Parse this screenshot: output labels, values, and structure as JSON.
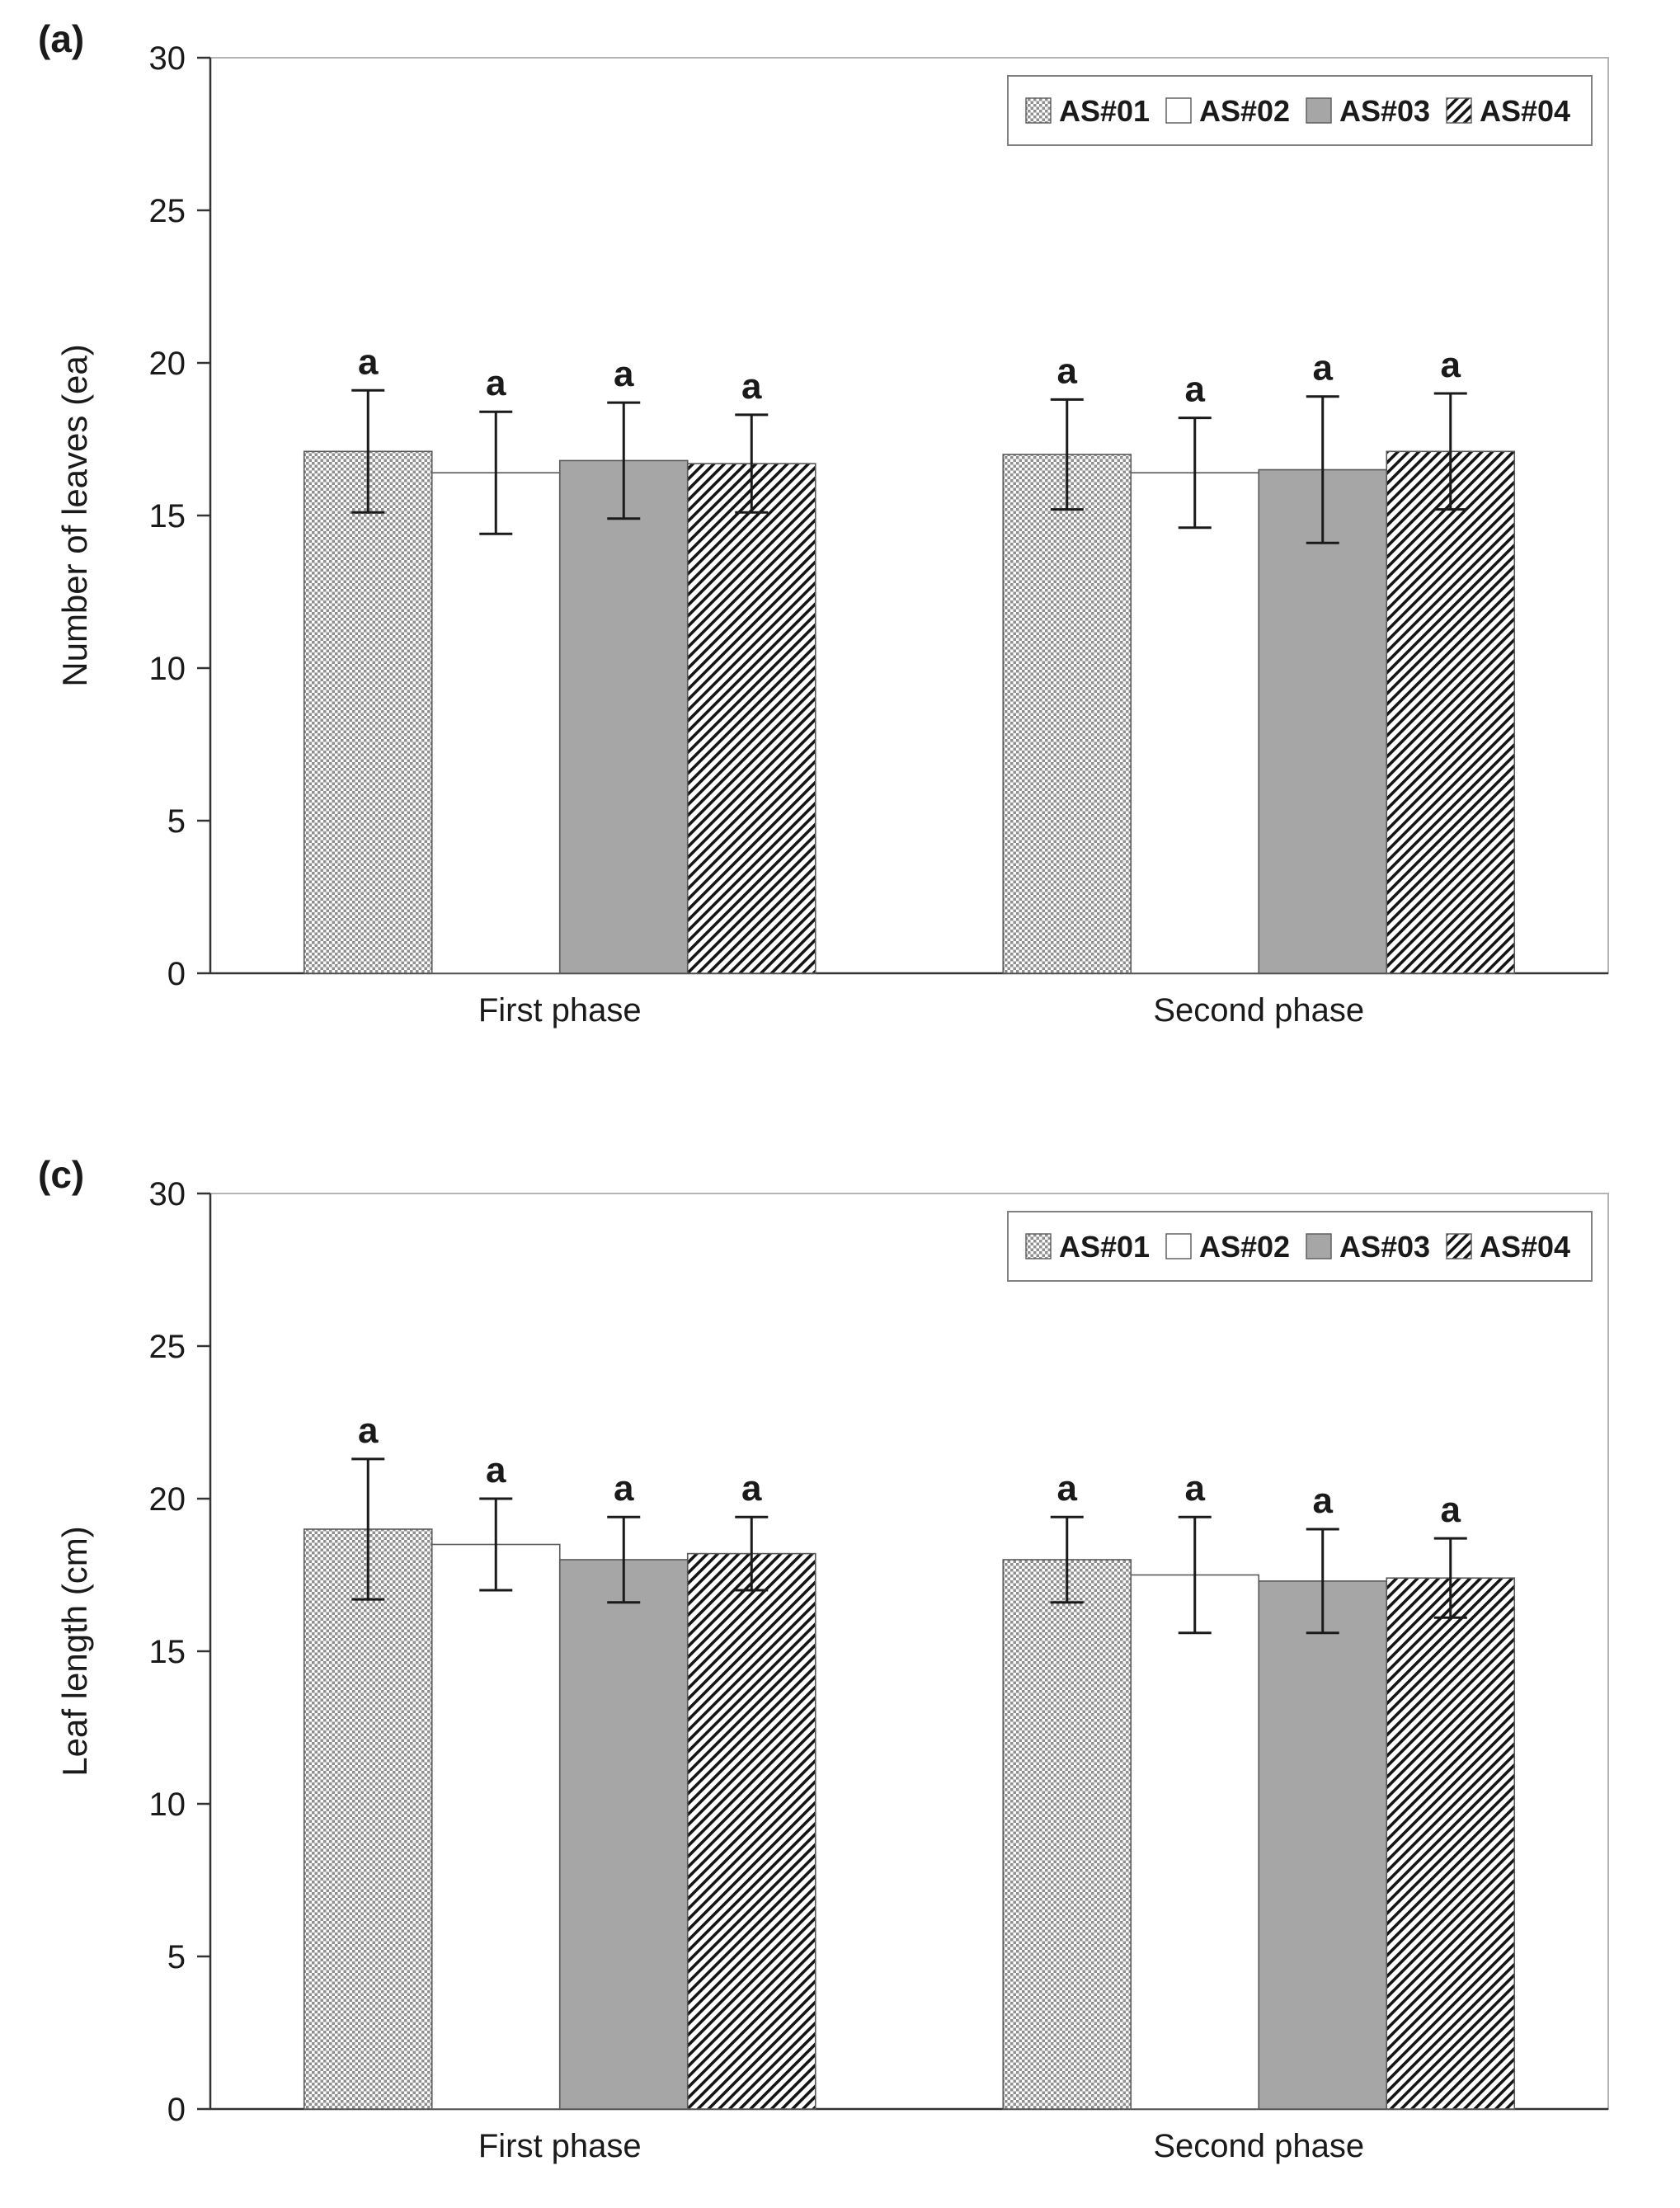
{
  "page": {
    "background": "#ffffff"
  },
  "chart_data": [
    {
      "type": "bar",
      "panel_label": "(a)",
      "title": "",
      "xlabel": "",
      "ylabel": "Number of leaves (ea)",
      "ylim": [
        0,
        30
      ],
      "yticks": [
        0,
        5,
        10,
        15,
        20,
        25,
        30
      ],
      "grid": false,
      "legend_position": "top-right-inside",
      "categories": [
        "First phase",
        "Second phase"
      ],
      "series": [
        {
          "name": "AS#01",
          "pattern": "dots",
          "values": [
            17.1,
            17.0
          ],
          "errors": [
            2.0,
            1.8
          ],
          "sig_labels": [
            "a",
            "a"
          ]
        },
        {
          "name": "AS#02",
          "pattern": "white",
          "values": [
            16.4,
            16.4
          ],
          "errors": [
            2.0,
            1.8
          ],
          "sig_labels": [
            "a",
            "a"
          ]
        },
        {
          "name": "AS#03",
          "pattern": "solid",
          "values": [
            16.8,
            16.5
          ],
          "errors": [
            1.9,
            2.4
          ],
          "sig_labels": [
            "a",
            "a"
          ]
        },
        {
          "name": "AS#04",
          "pattern": "hatch",
          "values": [
            16.7,
            17.1
          ],
          "errors": [
            1.6,
            1.9
          ],
          "sig_labels": [
            "a",
            "a"
          ]
        }
      ]
    },
    {
      "type": "bar",
      "panel_label": "(c)",
      "title": "",
      "xlabel": "",
      "ylabel": "Leaf length (cm)",
      "ylim": [
        0,
        30
      ],
      "yticks": [
        0,
        5,
        10,
        15,
        20,
        25,
        30
      ],
      "grid": false,
      "legend_position": "top-right-inside",
      "categories": [
        "First phase",
        "Second phase"
      ],
      "series": [
        {
          "name": "AS#01",
          "pattern": "dots",
          "values": [
            19.0,
            18.0
          ],
          "errors": [
            2.3,
            1.4
          ],
          "sig_labels": [
            "a",
            "a"
          ]
        },
        {
          "name": "AS#02",
          "pattern": "white",
          "values": [
            18.5,
            17.5
          ],
          "errors": [
            1.5,
            1.9
          ],
          "sig_labels": [
            "a",
            "a"
          ]
        },
        {
          "name": "AS#03",
          "pattern": "solid",
          "values": [
            18.0,
            17.3
          ],
          "errors": [
            1.4,
            1.7
          ],
          "sig_labels": [
            "a",
            "a"
          ]
        },
        {
          "name": "AS#04",
          "pattern": "hatch",
          "values": [
            18.2,
            17.4
          ],
          "errors": [
            1.2,
            1.3
          ],
          "sig_labels": [
            "a",
            "a"
          ]
        }
      ]
    }
  ],
  "colors": {
    "bar_gray": "#a6a6a6",
    "pattern_gray": "#8f8f8f",
    "bar_border": "#595959",
    "error_bar": "#1a1a1a",
    "axis": "#333333",
    "frame": "#b4b4b4",
    "text": "#1a1a1a",
    "legend_border": "#808080"
  }
}
